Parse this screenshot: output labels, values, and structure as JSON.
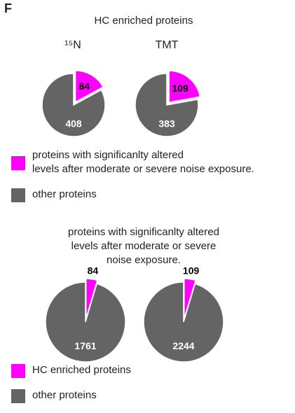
{
  "panel_label": "F",
  "chart_data": [
    {
      "type": "pie",
      "title": "HC enriched proteins",
      "subtitle": "¹⁵N",
      "categories": [
        "proteins with significanlty altered\nlevels after moderate or severe noise exposure.",
        "other proteins"
      ],
      "values": [
        84,
        408
      ],
      "colors": [
        "#ff00ff",
        "#646464"
      ],
      "legend": true
    },
    {
      "type": "pie",
      "subtitle": "TMT",
      "categories": [
        "proteins with significanlty altered\nlevels after moderate or severe noise exposure.",
        "other proteins"
      ],
      "values": [
        109,
        383
      ],
      "colors": [
        "#ff00ff",
        "#646464"
      ],
      "legend": false
    },
    {
      "type": "pie",
      "title": "proteins with significanlty altered\nlevels after moderate or severe noise exposure.",
      "categories": [
        "HC enriched proteins",
        "other proteins"
      ],
      "values": [
        84,
        1761
      ],
      "colors": [
        "#ff00ff",
        "#646464"
      ],
      "legend": true
    },
    {
      "type": "pie",
      "categories": [
        "HC enriched proteins",
        "other proteins"
      ],
      "values": [
        109,
        2244
      ],
      "colors": [
        "#ff00ff",
        "#646464"
      ],
      "legend": false
    }
  ]
}
